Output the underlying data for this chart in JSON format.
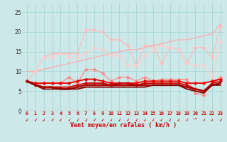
{
  "xlabel": "Vent moyen/en rafales ( km/h )",
  "x": [
    0,
    1,
    2,
    3,
    4,
    5,
    6,
    7,
    8,
    9,
    10,
    11,
    12,
    13,
    14,
    15,
    16,
    17,
    18,
    19,
    20,
    21,
    22,
    23
  ],
  "bg_color": "#cce8e8",
  "grid_color": "#aad8d8",
  "ylim": [
    0,
    27
  ],
  "yticks": [
    0,
    5,
    10,
    15,
    20,
    25
  ],
  "series": [
    {
      "color": "#ffaaaa",
      "lw": 0.9,
      "marker": null,
      "y": [
        10.0,
        10.0,
        10.5,
        11.0,
        11.5,
        12.0,
        12.5,
        13.0,
        13.5,
        14.0,
        14.5,
        15.0,
        15.5,
        15.5,
        16.0,
        16.5,
        17.0,
        17.5,
        18.0,
        18.0,
        18.5,
        19.0,
        19.5,
        22.0
      ]
    },
    {
      "color": "#ffbbbb",
      "lw": 0.9,
      "marker": "D",
      "markersize": 2.5,
      "y": [
        7.5,
        10.0,
        13.5,
        14.5,
        14.5,
        14.5,
        14.5,
        20.5,
        20.5,
        20.0,
        18.0,
        18.0,
        16.5,
        11.5,
        16.5,
        16.5,
        12.0,
        16.0,
        15.5,
        12.0,
        16.0,
        16.0,
        13.5,
        21.5
      ]
    },
    {
      "color": "#ffcccc",
      "lw": 0.9,
      "marker": "D",
      "markersize": 2.5,
      "y": [
        7.5,
        10.0,
        13.5,
        13.5,
        14.5,
        13.5,
        13.5,
        14.5,
        16.0,
        15.5,
        14.0,
        14.0,
        11.5,
        11.5,
        14.0,
        15.5,
        16.5,
        16.0,
        15.5,
        12.0,
        11.5,
        11.5,
        8.5,
        17.5
      ]
    },
    {
      "color": "#ff8888",
      "lw": 0.9,
      "marker": "D",
      "markersize": 2.5,
      "y": [
        7.5,
        6.5,
        7.0,
        7.0,
        7.0,
        8.5,
        7.0,
        10.5,
        10.5,
        9.5,
        7.5,
        8.5,
        8.5,
        7.5,
        8.5,
        7.5,
        8.0,
        8.0,
        8.0,
        8.0,
        4.5,
        4.0,
        7.0,
        8.5
      ]
    },
    {
      "color": "#ee0000",
      "lw": 1.3,
      "marker": "D",
      "markersize": 2.5,
      "y": [
        7.5,
        7.0,
        7.0,
        7.0,
        7.0,
        7.0,
        7.5,
        8.0,
        8.0,
        7.5,
        7.0,
        7.0,
        7.0,
        7.0,
        7.5,
        7.5,
        7.5,
        7.5,
        7.5,
        7.0,
        7.0,
        7.0,
        7.5,
        8.0
      ]
    },
    {
      "color": "#cc0000",
      "lw": 1.3,
      "marker": "D",
      "markersize": 2.0,
      "y": [
        7.5,
        6.5,
        6.0,
        6.0,
        6.0,
        6.0,
        6.5,
        7.0,
        7.0,
        7.0,
        6.5,
        7.0,
        7.0,
        6.5,
        7.0,
        7.0,
        7.0,
        7.0,
        7.0,
        6.5,
        5.5,
        5.0,
        7.0,
        7.5
      ]
    },
    {
      "color": "#aa0000",
      "lw": 1.8,
      "marker": null,
      "y": [
        7.5,
        6.5,
        6.0,
        6.0,
        5.5,
        5.5,
        6.0,
        6.5,
        6.5,
        6.5,
        6.5,
        6.5,
        6.5,
        6.5,
        6.5,
        6.5,
        6.5,
        6.5,
        6.5,
        6.0,
        5.5,
        5.0,
        6.5,
        7.0
      ]
    },
    {
      "color": "#880000",
      "lw": 1.3,
      "marker": null,
      "y": [
        7.5,
        6.5,
        5.5,
        5.5,
        5.5,
        5.5,
        5.5,
        6.0,
        6.0,
        6.0,
        6.0,
        6.0,
        6.0,
        6.0,
        6.0,
        6.5,
        6.5,
        6.5,
        6.5,
        5.5,
        5.0,
        4.5,
        6.5,
        6.5
      ]
    }
  ],
  "wind_arrow_angles": [
    210,
    220,
    210,
    225,
    220,
    210,
    215,
    215,
    220,
    215,
    210,
    215,
    220,
    215,
    200,
    210,
    215,
    215,
    215,
    215,
    85,
    215,
    210,
    220
  ]
}
